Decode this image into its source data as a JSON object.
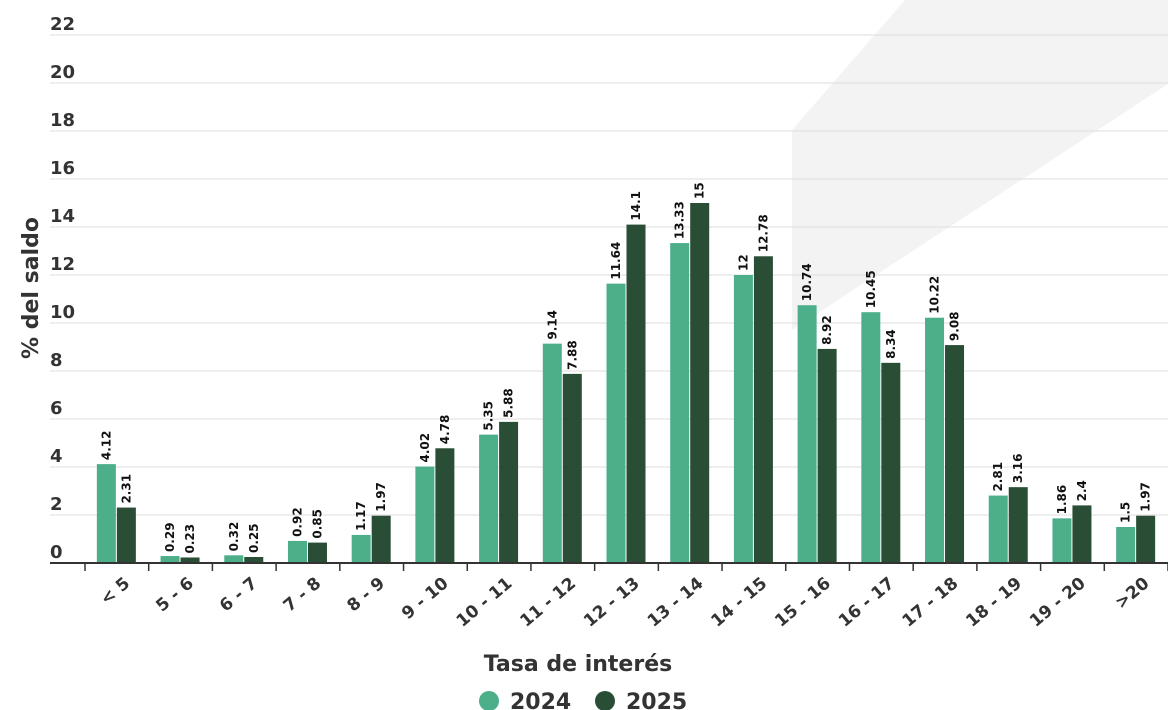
{
  "chart_data": {
    "type": "bar",
    "categories": [
      "< 5",
      "5 - 6",
      "6 - 7",
      "7 - 8",
      "8 - 9",
      "9 - 10",
      "10 - 11",
      "11 - 12",
      "12 - 13",
      "13 - 14",
      "14 - 15",
      "15 - 16",
      "16 - 17",
      "17 - 18",
      "18 - 19",
      "19 - 20",
      ">20"
    ],
    "series": [
      {
        "name": "2024",
        "color": "#4caf8a",
        "values": [
          4.12,
          0.29,
          0.32,
          0.92,
          1.17,
          4.02,
          5.35,
          9.14,
          11.64,
          13.33,
          12,
          10.74,
          10.45,
          10.22,
          2.81,
          1.86,
          1.5
        ]
      },
      {
        "name": "2025",
        "color": "#2a4d35",
        "values": [
          2.31,
          0.23,
          0.25,
          0.85,
          1.97,
          4.78,
          5.88,
          7.88,
          14.1,
          15,
          12.78,
          8.92,
          8.34,
          9.08,
          3.16,
          2.4,
          1.97
        ]
      }
    ],
    "xlabel": "Tasa de interés",
    "ylabel": "% del saldo",
    "ylim": [
      0,
      22
    ],
    "yticks": [
      0,
      2,
      4,
      6,
      8,
      10,
      12,
      14,
      16,
      18,
      20,
      22
    ],
    "grid": true,
    "legend": "bottom-center"
  }
}
